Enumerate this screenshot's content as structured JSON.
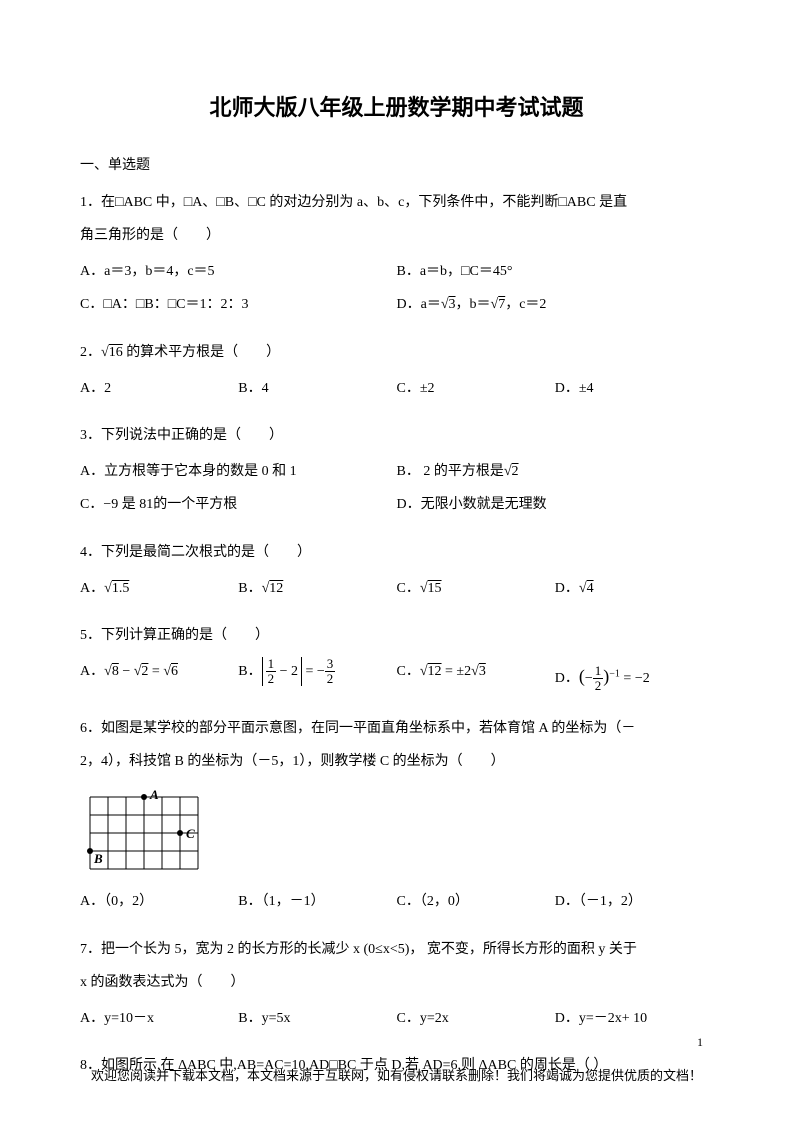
{
  "title": "北师大版八年级上册数学期中考试试题",
  "section1": "一、单选题",
  "q1": {
    "text_a": "1．在□ABC 中，□A、□B、□C 的对边分别为 a、b、c，下列条件中，不能判断□ABC 是直",
    "text_b": "角三角形的是（　　）",
    "optA": "A．a＝3，b＝4，c＝5",
    "optB": "B．a＝b，□C＝45°",
    "optC": "C．□A：□B：□C＝1：2：3",
    "optD_pre": "D．a＝",
    "optD_sqrt1": "3",
    "optD_mid": "，b＝",
    "optD_sqrt2": "7",
    "optD_post": "，c＝2"
  },
  "q2": {
    "text_pre": "2．",
    "text_sqrt": "16",
    "text_post": " 的算术平方根是（　　）",
    "optA": "A．2",
    "optB": "B．4",
    "optC": "C．±2",
    "optD": "D．±4"
  },
  "q3": {
    "text": "3．下列说法中正确的是（　　）",
    "optA": "A．立方根等于它本身的数是 0 和 1",
    "optB_pre": "B． 2 的平方根是",
    "optB_sqrt": "2",
    "optC": "C．−9 是 81的一个平方根",
    "optD": "D．无限小数就是无理数"
  },
  "q4": {
    "text": "4．下列是最简二次根式的是（　　）",
    "optA_pre": "A．",
    "optA_sqrt": "1.5",
    "optB_pre": "B．",
    "optB_sqrt": "12",
    "optC_pre": "C．",
    "optC_sqrt": "15",
    "optD_pre": "D．",
    "optD_sqrt": "4"
  },
  "q5": {
    "text": "5．下列计算正确的是（　　）",
    "optA_pre": "A．",
    "optA_s1": "8",
    "optA_mid1": " − ",
    "optA_s2": "2",
    "optA_mid2": " = ",
    "optA_s3": "6",
    "optB_pre": "B．",
    "optB_num1": "1",
    "optB_den1": "2",
    "optB_mid": " − 2",
    "optB_eq": " = −",
    "optB_num2": "3",
    "optB_den2": "2",
    "optC_pre": "C．",
    "optC_s1": "12",
    "optC_mid": " = ±2",
    "optC_s2": "3",
    "optD_pre": "D．",
    "optD_num": "1",
    "optD_den": "2",
    "optD_exp": "−1",
    "optD_post": " = −2"
  },
  "q6": {
    "text_a": "6．如图是某学校的部分平面示意图，在同一平面直角坐标系中，若体育馆 A 的坐标为（－",
    "text_b": "2，4），科技馆 B 的坐标为（－5，1），则教学楼 C 的坐标为（　　）",
    "labelA": "A",
    "labelB": "B",
    "labelC": "C",
    "optA": "A．（0，2）",
    "optB": "B．（1，－1）",
    "optC": "C．（2，0）",
    "optD": "D．（－1，2）",
    "grid": {
      "cols": 6,
      "rows": 4,
      "cell": 18,
      "stroke": "#000",
      "A_pos": [
        3,
        0
      ],
      "B_pos": [
        0,
        3
      ],
      "C_pos": [
        5,
        2
      ]
    }
  },
  "q7": {
    "text_a": "7．把一个长为 5，宽为 2 的长方形的长减少 x (0≤x<5)， 宽不变，所得长方形的面积 y 关于",
    "text_b": "x 的函数表达式为（　　）",
    "optA": "A．y=10－x",
    "optB": "B．y=5x",
    "optC": "C．y=2x",
    "optD": "D．y=－2x+ 10"
  },
  "q8": {
    "text": "8．如图所示,在 ΔABC 中,AB=AC=10,AD□BC 于点 D,若 AD=6,则 ΔABC 的周长是（  ）"
  },
  "pageNum": "1",
  "footer": "欢迎您阅读并下载本文档，本文档来源于互联网，如有侵权请联系删除！我们将竭诚为您提供优质的文档！"
}
